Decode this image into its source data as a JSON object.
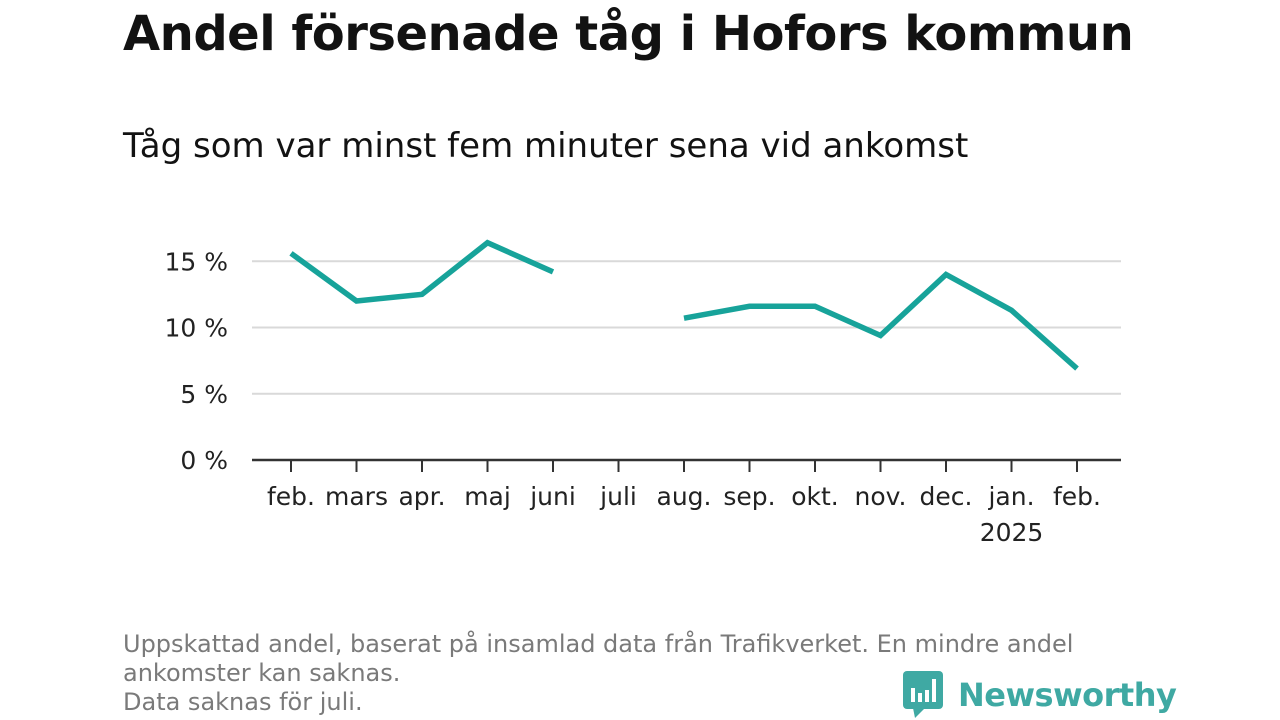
{
  "title": "Andel försenade tåg i Hofors kommun",
  "subtitle": "Tåg som var minst fem minuter sena vid ankomst",
  "colors": {
    "line": "#17a39a",
    "grid": "#d9d9d9",
    "axis": "#333333",
    "brand": "#3fa9a3"
  },
  "chart_data": {
    "type": "line",
    "categories": [
      "feb.",
      "mars",
      "apr.",
      "maj",
      "juni",
      "juli",
      "aug.",
      "sep.",
      "okt.",
      "nov.",
      "dec.",
      "jan.",
      "feb."
    ],
    "category_sublabels": [
      "",
      "",
      "",
      "",
      "",
      "",
      "",
      "",
      "",
      "",
      "",
      "2025",
      ""
    ],
    "series": [
      {
        "values": [
          15.6,
          12.0,
          12.5,
          16.4,
          14.2,
          null,
          10.7,
          11.6,
          11.6,
          9.4,
          14.0,
          11.3,
          6.9
        ]
      }
    ],
    "yticks": [
      0,
      5,
      10,
      15
    ],
    "ytick_labels": [
      "0 %",
      "5 %",
      "10 %",
      "15 %"
    ],
    "ylim": [
      0,
      17
    ],
    "grid": true,
    "xlabel": "",
    "ylabel": ""
  },
  "footnote": {
    "line1": "Uppskattad andel, baserat på insamlad data från Trafikverket. En mindre andel",
    "line2": "ankomster kan saknas.",
    "line3": "Data saknas för juli."
  },
  "brand": {
    "name": "Newsworthy",
    "icon": "bar-chart-speech-bubble-icon"
  }
}
